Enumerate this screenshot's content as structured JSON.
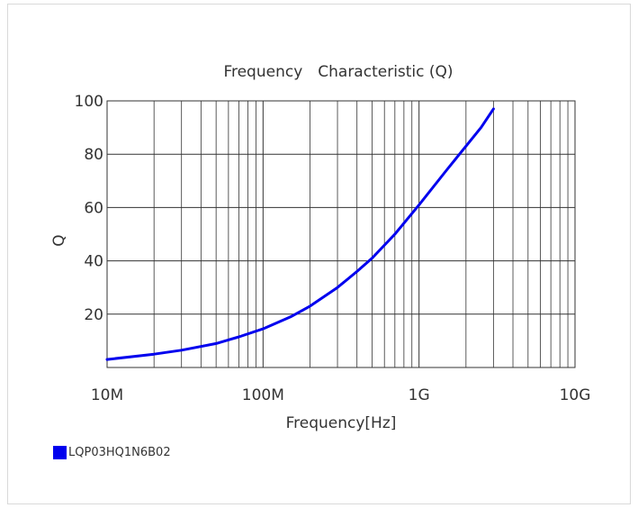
{
  "chart_data": {
    "type": "line",
    "title": "Frequency　Characteristic (Q)",
    "xlabel": "Frequency[Hz]",
    "ylabel": "Q",
    "x_scale": "log",
    "xlim": [
      10000000,
      10000000000
    ],
    "ylim": [
      0,
      100
    ],
    "x_ticks": [
      {
        "value": 10000000,
        "label": "10M"
      },
      {
        "value": 100000000,
        "label": "100M"
      },
      {
        "value": 1000000000,
        "label": "1G"
      },
      {
        "value": 10000000000,
        "label": "10G"
      }
    ],
    "y_ticks": [
      {
        "value": 20,
        "label": "20"
      },
      {
        "value": 40,
        "label": "40"
      },
      {
        "value": 60,
        "label": "60"
      },
      {
        "value": 80,
        "label": "80"
      },
      {
        "value": 100,
        "label": "100"
      }
    ],
    "grid": true,
    "legend_position": "bottom-left",
    "series": [
      {
        "name": "LQP03HQ1N6B02",
        "color": "#0000ee",
        "x": [
          10000000,
          20000000,
          30000000,
          50000000,
          70000000,
          100000000,
          150000000,
          200000000,
          300000000,
          400000000,
          500000000,
          700000000,
          1000000000,
          1500000000,
          2000000000,
          2500000000,
          3000000000
        ],
        "y": [
          3,
          5,
          6.5,
          9,
          11.5,
          14.5,
          19,
          23,
          30,
          36,
          41,
          50,
          61,
          74,
          83,
          90,
          97
        ]
      }
    ]
  }
}
